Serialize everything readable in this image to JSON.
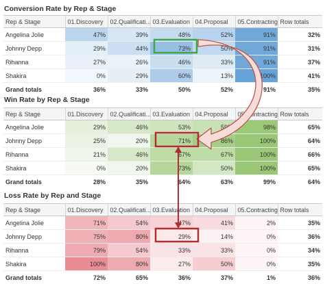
{
  "columns": [
    "Rep & Stage",
    "01.Discovery",
    "02.Qualificati...",
    "03.Evaluation",
    "04.Proposal",
    "05.Contracting",
    "Row totals"
  ],
  "colors": {
    "blue": "#5b9bd5",
    "green": "#92c36a",
    "red": "#e8838c",
    "highlight_green": "#3ea84a",
    "highlight_red": "#b22d2d",
    "arrow_fill": "#f6ddd9",
    "arrow_stroke": "#b8574a"
  },
  "tables": [
    {
      "title": "Conversion Rate by Rep & Stage",
      "rows": [
        {
          "rep": "Angelina Jolie",
          "cells": [
            "47%",
            "39%",
            "48%",
            "52%",
            "91%"
          ],
          "total": "32%",
          "levels": [
            0.4,
            0.2,
            0.32,
            0.42,
            0.93
          ]
        },
        {
          "rep": "Johnny Depp",
          "cells": [
            "29%",
            "44%",
            "73%",
            "50%",
            "91%"
          ],
          "total": "31%",
          "levels": [
            0.1,
            0.28,
            0.66,
            0.36,
            0.93
          ]
        },
        {
          "rep": "Rihanna",
          "cells": [
            "27%",
            "26%",
            "46%",
            "33%",
            "91%"
          ],
          "total": "37%",
          "levels": [
            0.07,
            0.06,
            0.3,
            0.14,
            0.93
          ]
        },
        {
          "rep": "Shakira",
          "cells": [
            "0%",
            "29%",
            "60%",
            "13%",
            "100%"
          ],
          "total": "41%",
          "levels": [
            0.0,
            0.1,
            0.5,
            0.03,
            1.0
          ]
        }
      ],
      "grand": {
        "label": "Grand totals",
        "cells": [
          "36%",
          "33%",
          "50%",
          "52%",
          "91%"
        ],
        "total": "35%"
      }
    },
    {
      "title": "Win Rate by Rep & Stage",
      "rows": [
        {
          "rep": "Angelina Jolie",
          "cells": [
            "29%",
            "46%",
            "53%",
            "59%",
            "98%"
          ],
          "total": "65%",
          "levels": [
            0.18,
            0.35,
            0.42,
            0.5,
            0.97
          ]
        },
        {
          "rep": "Johnny Depp",
          "cells": [
            "25%",
            "20%",
            "71%",
            "86%",
            "100%"
          ],
          "total": "64%",
          "levels": [
            0.12,
            0.06,
            0.68,
            0.86,
            1.0
          ]
        },
        {
          "rep": "Rihanna",
          "cells": [
            "21%",
            "46%",
            "67%",
            "67%",
            "100%"
          ],
          "total": "66%",
          "levels": [
            0.07,
            0.35,
            0.6,
            0.6,
            1.0
          ]
        },
        {
          "rep": "Shakira",
          "cells": [
            "0%",
            "20%",
            "73%",
            "50%",
            "100%"
          ],
          "total": "65%",
          "levels": [
            0.0,
            0.06,
            0.7,
            0.38,
            1.0
          ]
        }
      ],
      "grand": {
        "label": "Grand totals",
        "cells": [
          "28%",
          "35%",
          "64%",
          "63%",
          "99%"
        ],
        "total": "64%"
      }
    },
    {
      "title": "Loss Rate by Rep and Stage",
      "rows": [
        {
          "rep": "Angelina Jolie",
          "cells": [
            "71%",
            "54%",
            "47%",
            "41%",
            "2%"
          ],
          "total": "35%",
          "levels": [
            0.6,
            0.42,
            0.33,
            0.25,
            0.0
          ]
        },
        {
          "rep": "Johnny Depp",
          "cells": [
            "75%",
            "80%",
            "29%",
            "14%",
            "0%"
          ],
          "total": "36%",
          "levels": [
            0.65,
            0.72,
            0.12,
            0.03,
            0.0
          ]
        },
        {
          "rep": "Rihanna",
          "cells": [
            "79%",
            "54%",
            "33%",
            "33%",
            "0%"
          ],
          "total": "34%",
          "levels": [
            0.7,
            0.42,
            0.17,
            0.17,
            0.0
          ]
        },
        {
          "rep": "Shakira",
          "cells": [
            "100%",
            "80%",
            "27%",
            "50%",
            "0%"
          ],
          "total": "35%",
          "levels": [
            1.0,
            0.72,
            0.1,
            0.38,
            0.0
          ]
        }
      ],
      "grand": {
        "label": "Grand totals",
        "cells": [
          "72%",
          "65%",
          "36%",
          "37%",
          "1%"
        ],
        "total": "36%"
      }
    }
  ]
}
